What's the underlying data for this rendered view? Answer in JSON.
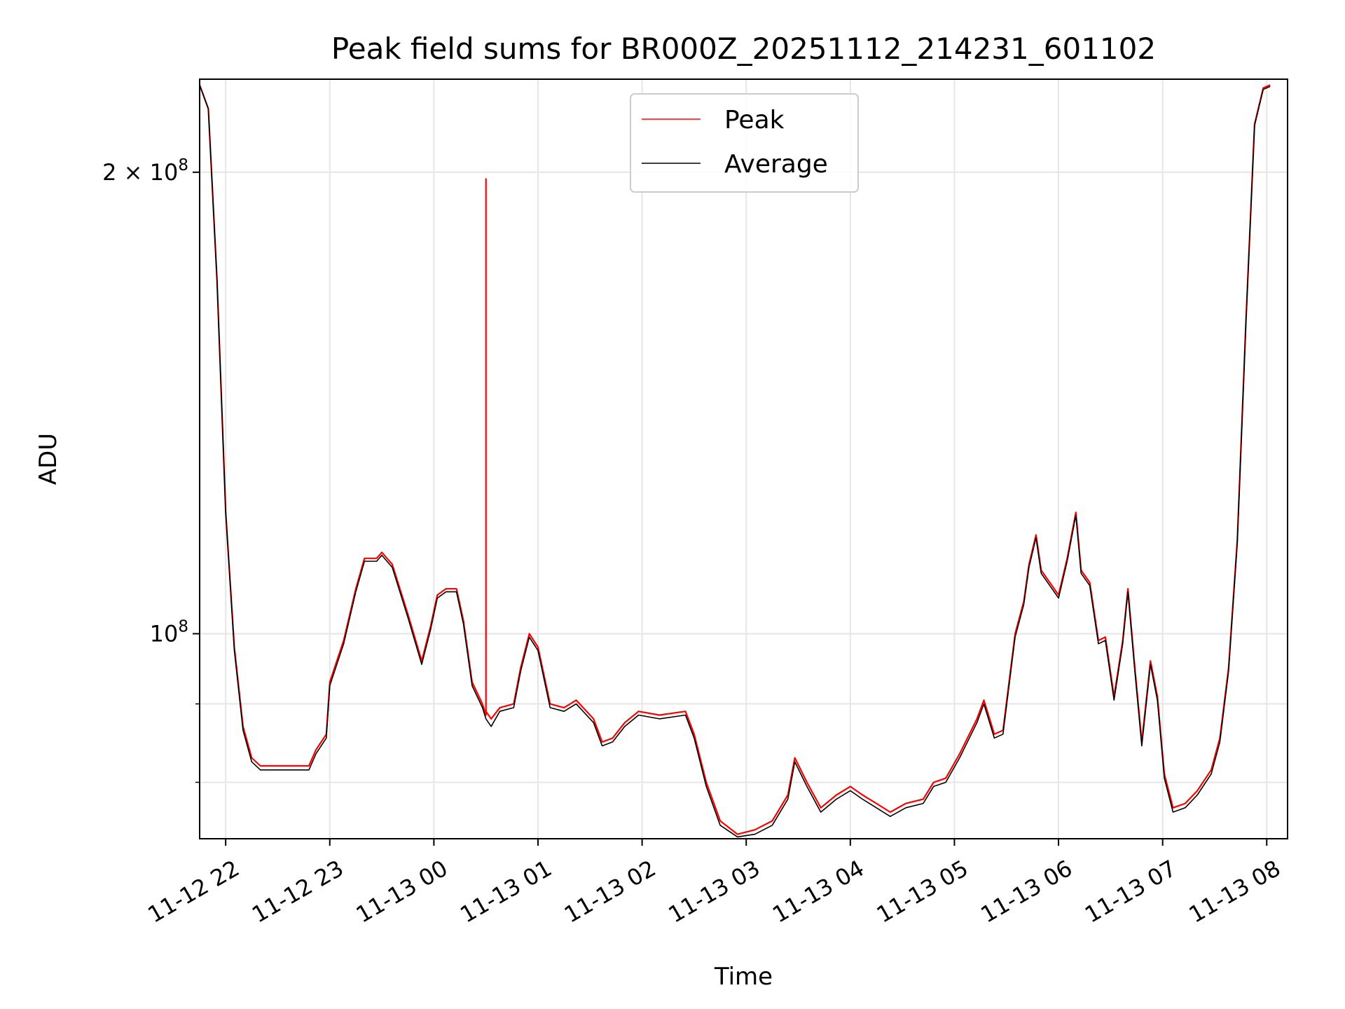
{
  "chart_data": {
    "type": "line",
    "title": "Peak field sums for BR000Z_20251112_214231_601102",
    "xlabel": "Time",
    "ylabel": "ADU",
    "yscale": "log",
    "grid": true,
    "legend_position": "top-center",
    "xlim": [
      "2025-11-12 21:45",
      "2025-11-13 08:12"
    ],
    "ylim": [
      73500000,
      230000000
    ],
    "x_ticks": [
      {
        "t": "2025-11-12 22:00",
        "label": "11-12 22"
      },
      {
        "t": "2025-11-12 23:00",
        "label": "11-12 23"
      },
      {
        "t": "2025-11-13 00:00",
        "label": "11-13 00"
      },
      {
        "t": "2025-11-13 01:00",
        "label": "11-13 01"
      },
      {
        "t": "2025-11-13 02:00",
        "label": "11-13 02"
      },
      {
        "t": "2025-11-13 03:00",
        "label": "11-13 03"
      },
      {
        "t": "2025-11-13 04:00",
        "label": "11-13 04"
      },
      {
        "t": "2025-11-13 05:00",
        "label": "11-13 05"
      },
      {
        "t": "2025-11-13 06:00",
        "label": "11-13 06"
      },
      {
        "t": "2025-11-13 07:00",
        "label": "11-13 07"
      },
      {
        "t": "2025-11-13 08:00",
        "label": "11-13 08"
      }
    ],
    "y_major_ticks": [
      {
        "value": 100000000,
        "base": "10",
        "exp": "8",
        "coef": ""
      },
      {
        "value": 200000000,
        "base": "10",
        "exp": "8",
        "coef": "2 × "
      }
    ],
    "y_minor_ticks": [
      80000000,
      90000000
    ],
    "series": [
      {
        "name": "Peak",
        "color": "#ff0000",
        "points": [
          [
            "2025-11-12 21:45",
            228000000
          ],
          [
            "2025-11-12 21:50",
            220000000
          ],
          [
            "2025-11-12 21:55",
            170000000
          ],
          [
            "2025-11-12 22:00",
            120000000
          ],
          [
            "2025-11-12 22:05",
            98000000
          ],
          [
            "2025-11-12 22:10",
            87000000
          ],
          [
            "2025-11-12 22:15",
            83000000
          ],
          [
            "2025-11-12 22:20",
            82000000
          ],
          [
            "2025-11-12 22:35",
            82000000
          ],
          [
            "2025-11-12 22:48",
            82000000
          ],
          [
            "2025-11-12 22:52",
            84000000
          ],
          [
            "2025-11-12 22:58",
            86000000
          ],
          [
            "2025-11-12 23:00",
            93000000
          ],
          [
            "2025-11-12 23:08",
            99000000
          ],
          [
            "2025-11-12 23:15",
            107000000
          ],
          [
            "2025-11-12 23:20",
            112000000
          ],
          [
            "2025-11-12 23:27",
            112000000
          ],
          [
            "2025-11-12 23:30",
            113000000
          ],
          [
            "2025-11-12 23:36",
            111000000
          ],
          [
            "2025-11-12 23:45",
            103000000
          ],
          [
            "2025-11-12 23:53",
            96000000
          ],
          [
            "2025-11-12 23:58",
            101000000
          ],
          [
            "2025-11-13 00:02",
            106000000
          ],
          [
            "2025-11-13 00:07",
            107000000
          ],
          [
            "2025-11-13 00:13",
            107000000
          ],
          [
            "2025-11-13 00:17",
            102000000
          ],
          [
            "2025-11-13 00:22",
            93000000
          ],
          [
            "2025-11-13 00:28",
            90000000
          ],
          [
            "2025-11-13 00:30",
            88500000
          ],
          [
            "2025-11-13 00:30",
            198000000
          ],
          [
            "2025-11-13 00:30",
            89000000
          ],
          [
            "2025-11-13 00:33",
            88000000
          ],
          [
            "2025-11-13 00:38",
            89500000
          ],
          [
            "2025-11-13 00:46",
            90000000
          ],
          [
            "2025-11-13 00:50",
            95000000
          ],
          [
            "2025-11-13 00:55",
            100000000
          ],
          [
            "2025-11-13 01:00",
            98000000
          ],
          [
            "2025-11-13 01:07",
            90000000
          ],
          [
            "2025-11-13 01:15",
            89500000
          ],
          [
            "2025-11-13 01:22",
            90500000
          ],
          [
            "2025-11-13 01:26",
            89500000
          ],
          [
            "2025-11-13 01:32",
            88000000
          ],
          [
            "2025-11-13 01:37",
            85000000
          ],
          [
            "2025-11-13 01:43",
            85500000
          ],
          [
            "2025-11-13 01:50",
            87500000
          ],
          [
            "2025-11-13 01:58",
            89000000
          ],
          [
            "2025-11-13 02:10",
            88500000
          ],
          [
            "2025-11-13 02:25",
            89000000
          ],
          [
            "2025-11-13 02:30",
            86000000
          ],
          [
            "2025-11-13 02:37",
            80000000
          ],
          [
            "2025-11-13 02:45",
            75500000
          ],
          [
            "2025-11-13 02:55",
            74000000
          ],
          [
            "2025-11-13 03:05",
            74500000
          ],
          [
            "2025-11-13 03:15",
            75500000
          ],
          [
            "2025-11-13 03:24",
            78500000
          ],
          [
            "2025-11-13 03:28",
            83000000
          ],
          [
            "2025-11-13 03:35",
            80000000
          ],
          [
            "2025-11-13 03:43",
            77000000
          ],
          [
            "2025-11-13 03:52",
            78500000
          ],
          [
            "2025-11-13 04:00",
            79500000
          ],
          [
            "2025-11-13 04:07",
            78500000
          ],
          [
            "2025-11-13 04:15",
            77500000
          ],
          [
            "2025-11-13 04:23",
            76500000
          ],
          [
            "2025-11-13 04:32",
            77500000
          ],
          [
            "2025-11-13 04:42",
            78000000
          ],
          [
            "2025-11-13 04:48",
            80000000
          ],
          [
            "2025-11-13 04:55",
            80500000
          ],
          [
            "2025-11-13 05:03",
            83500000
          ],
          [
            "2025-11-13 05:13",
            88000000
          ],
          [
            "2025-11-13 05:17",
            90500000
          ],
          [
            "2025-11-13 05:23",
            86000000
          ],
          [
            "2025-11-13 05:28",
            86500000
          ],
          [
            "2025-11-13 05:35",
            100000000
          ],
          [
            "2025-11-13 05:40",
            105000000
          ],
          [
            "2025-11-13 05:43",
            111000000
          ],
          [
            "2025-11-13 05:47",
            116000000
          ],
          [
            "2025-11-13 05:50",
            110000000
          ],
          [
            "2025-11-13 06:00",
            106000000
          ],
          [
            "2025-11-13 06:05",
            112000000
          ],
          [
            "2025-11-13 06:10",
            120000000
          ],
          [
            "2025-11-13 06:13",
            110000000
          ],
          [
            "2025-11-13 06:18",
            108000000
          ],
          [
            "2025-11-13 06:23",
            99000000
          ],
          [
            "2025-11-13 06:27",
            99500000
          ],
          [
            "2025-11-13 06:32",
            91000000
          ],
          [
            "2025-11-13 06:37",
            99000000
          ],
          [
            "2025-11-13 06:40",
            107000000
          ],
          [
            "2025-11-13 06:44",
            95000000
          ],
          [
            "2025-11-13 06:48",
            85000000
          ],
          [
            "2025-11-13 06:53",
            96000000
          ],
          [
            "2025-11-13 06:57",
            91000000
          ],
          [
            "2025-11-13 07:01",
            81000000
          ],
          [
            "2025-11-13 07:06",
            77000000
          ],
          [
            "2025-11-13 07:13",
            77500000
          ],
          [
            "2025-11-13 07:20",
            79000000
          ],
          [
            "2025-11-13 07:28",
            81500000
          ],
          [
            "2025-11-13 07:33",
            85500000
          ],
          [
            "2025-11-13 07:38",
            95000000
          ],
          [
            "2025-11-13 07:43",
            115000000
          ],
          [
            "2025-11-13 07:48",
            160000000
          ],
          [
            "2025-11-13 07:53",
            215000000
          ],
          [
            "2025-11-13 07:58",
            227000000
          ],
          [
            "2025-11-13 08:02",
            228000000
          ]
        ]
      },
      {
        "name": "Average",
        "color": "#000000",
        "points": [
          [
            "2025-11-12 21:45",
            228000000
          ],
          [
            "2025-11-12 21:50",
            220000000
          ],
          [
            "2025-11-12 21:55",
            170000000
          ],
          [
            "2025-11-12 22:00",
            120000000
          ],
          [
            "2025-11-12 22:05",
            97500000
          ],
          [
            "2025-11-12 22:10",
            86500000
          ],
          [
            "2025-11-12 22:15",
            82500000
          ],
          [
            "2025-11-12 22:20",
            81500000
          ],
          [
            "2025-11-12 22:35",
            81500000
          ],
          [
            "2025-11-12 22:48",
            81500000
          ],
          [
            "2025-11-12 22:52",
            83500000
          ],
          [
            "2025-11-12 22:58",
            85500000
          ],
          [
            "2025-11-12 23:00",
            92500000
          ],
          [
            "2025-11-12 23:08",
            98500000
          ],
          [
            "2025-11-12 23:15",
            106500000
          ],
          [
            "2025-11-12 23:20",
            111500000
          ],
          [
            "2025-11-12 23:27",
            111500000
          ],
          [
            "2025-11-12 23:30",
            112500000
          ],
          [
            "2025-11-12 23:36",
            110500000
          ],
          [
            "2025-11-12 23:45",
            102500000
          ],
          [
            "2025-11-12 23:53",
            95500000
          ],
          [
            "2025-11-12 23:58",
            100500000
          ],
          [
            "2025-11-13 00:02",
            105500000
          ],
          [
            "2025-11-13 00:07",
            106500000
          ],
          [
            "2025-11-13 00:13",
            106500000
          ],
          [
            "2025-11-13 00:17",
            101500000
          ],
          [
            "2025-11-13 00:22",
            92500000
          ],
          [
            "2025-11-13 00:28",
            89500000
          ],
          [
            "2025-11-13 00:30",
            88000000
          ],
          [
            "2025-11-13 00:33",
            87000000
          ],
          [
            "2025-11-13 00:38",
            89000000
          ],
          [
            "2025-11-13 00:46",
            89500000
          ],
          [
            "2025-11-13 00:50",
            94500000
          ],
          [
            "2025-11-13 00:55",
            99500000
          ],
          [
            "2025-11-13 01:00",
            97500000
          ],
          [
            "2025-11-13 01:07",
            89500000
          ],
          [
            "2025-11-13 01:15",
            89000000
          ],
          [
            "2025-11-13 01:22",
            90000000
          ],
          [
            "2025-11-13 01:26",
            89000000
          ],
          [
            "2025-11-13 01:32",
            87500000
          ],
          [
            "2025-11-13 01:37",
            84500000
          ],
          [
            "2025-11-13 01:43",
            85000000
          ],
          [
            "2025-11-13 01:50",
            87000000
          ],
          [
            "2025-11-13 01:58",
            88500000
          ],
          [
            "2025-11-13 02:10",
            88000000
          ],
          [
            "2025-11-13 02:25",
            88500000
          ],
          [
            "2025-11-13 02:30",
            85500000
          ],
          [
            "2025-11-13 02:37",
            79500000
          ],
          [
            "2025-11-13 02:45",
            75000000
          ],
          [
            "2025-11-13 02:55",
            73700000
          ],
          [
            "2025-11-13 03:05",
            74000000
          ],
          [
            "2025-11-13 03:15",
            75000000
          ],
          [
            "2025-11-13 03:24",
            78000000
          ],
          [
            "2025-11-13 03:28",
            82500000
          ],
          [
            "2025-11-13 03:35",
            79500000
          ],
          [
            "2025-11-13 03:43",
            76500000
          ],
          [
            "2025-11-13 03:52",
            78000000
          ],
          [
            "2025-11-13 04:00",
            79000000
          ],
          [
            "2025-11-13 04:07",
            78000000
          ],
          [
            "2025-11-13 04:15",
            77000000
          ],
          [
            "2025-11-13 04:23",
            76000000
          ],
          [
            "2025-11-13 04:32",
            77000000
          ],
          [
            "2025-11-13 04:42",
            77500000
          ],
          [
            "2025-11-13 04:48",
            79500000
          ],
          [
            "2025-11-13 04:55",
            80000000
          ],
          [
            "2025-11-13 05:03",
            83000000
          ],
          [
            "2025-11-13 05:13",
            87500000
          ],
          [
            "2025-11-13 05:17",
            90000000
          ],
          [
            "2025-11-13 05:23",
            85500000
          ],
          [
            "2025-11-13 05:28",
            86000000
          ],
          [
            "2025-11-13 05:35",
            99500000
          ],
          [
            "2025-11-13 05:40",
            104500000
          ],
          [
            "2025-11-13 05:43",
            110500000
          ],
          [
            "2025-11-13 05:47",
            115500000
          ],
          [
            "2025-11-13 05:50",
            109500000
          ],
          [
            "2025-11-13 06:00",
            105500000
          ],
          [
            "2025-11-13 06:05",
            111500000
          ],
          [
            "2025-11-13 06:10",
            119500000
          ],
          [
            "2025-11-13 06:13",
            109500000
          ],
          [
            "2025-11-13 06:18",
            107500000
          ],
          [
            "2025-11-13 06:23",
            98500000
          ],
          [
            "2025-11-13 06:27",
            99000000
          ],
          [
            "2025-11-13 06:32",
            90500000
          ],
          [
            "2025-11-13 06:37",
            98500000
          ],
          [
            "2025-11-13 06:40",
            106500000
          ],
          [
            "2025-11-13 06:44",
            94500000
          ],
          [
            "2025-11-13 06:48",
            84500000
          ],
          [
            "2025-11-13 06:53",
            95500000
          ],
          [
            "2025-11-13 06:57",
            90500000
          ],
          [
            "2025-11-13 07:01",
            80500000
          ],
          [
            "2025-11-13 07:06",
            76500000
          ],
          [
            "2025-11-13 07:13",
            77000000
          ],
          [
            "2025-11-13 07:20",
            78500000
          ],
          [
            "2025-11-13 07:28",
            81000000
          ],
          [
            "2025-11-13 07:33",
            85000000
          ],
          [
            "2025-11-13 07:38",
            94500000
          ],
          [
            "2025-11-13 07:43",
            114500000
          ],
          [
            "2025-11-13 07:48",
            159500000
          ],
          [
            "2025-11-13 07:53",
            214500000
          ],
          [
            "2025-11-13 07:58",
            226500000
          ],
          [
            "2025-11-13 08:02",
            227500000
          ]
        ]
      }
    ]
  }
}
